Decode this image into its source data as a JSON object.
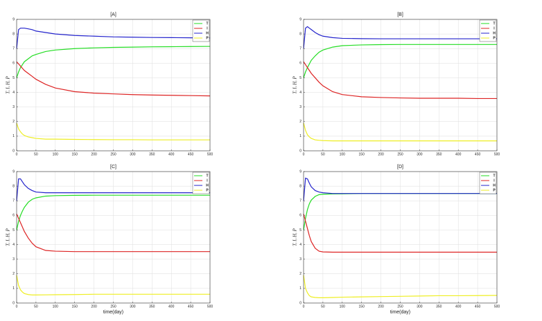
{
  "chart_data": [
    {
      "type": "line",
      "title": "[A]",
      "ylabel": "T, I, H, P",
      "x": [
        0,
        5,
        10,
        15,
        20,
        30,
        40,
        50,
        75,
        100,
        150,
        200,
        250,
        300,
        350,
        400,
        450,
        500
      ],
      "series": [
        {
          "name": "T",
          "color": "#22dd22",
          "values": [
            5.0,
            5.4,
            5.7,
            5.9,
            6.1,
            6.3,
            6.5,
            6.6,
            6.8,
            6.9,
            7.0,
            7.05,
            7.08,
            7.1,
            7.12,
            7.13,
            7.14,
            7.15
          ]
        },
        {
          "name": "I",
          "color": "#dd2222",
          "values": [
            6.1,
            5.95,
            5.8,
            5.65,
            5.5,
            5.3,
            5.1,
            4.9,
            4.55,
            4.3,
            4.05,
            3.95,
            3.9,
            3.85,
            3.82,
            3.8,
            3.78,
            3.76
          ]
        },
        {
          "name": "H",
          "color": "#2222cc",
          "values": [
            7.0,
            8.3,
            8.4,
            8.4,
            8.4,
            8.35,
            8.3,
            8.2,
            8.1,
            8.0,
            7.9,
            7.85,
            7.8,
            7.78,
            7.76,
            7.75,
            7.74,
            7.73
          ]
        },
        {
          "name": "P",
          "color": "#eeee22",
          "values": [
            1.9,
            1.5,
            1.3,
            1.15,
            1.05,
            0.95,
            0.9,
            0.85,
            0.8,
            0.8,
            0.78,
            0.77,
            0.76,
            0.76,
            0.75,
            0.75,
            0.75,
            0.75
          ]
        }
      ],
      "xlim": [
        0,
        500
      ],
      "ylim": [
        0,
        9
      ],
      "xticks": [
        0,
        50,
        100,
        150,
        200,
        250,
        300,
        350,
        400,
        450,
        500
      ],
      "yticks": [
        0,
        1,
        2,
        3,
        4,
        5,
        6,
        7,
        8,
        9
      ],
      "grid": true,
      "legend": "upper right"
    },
    {
      "type": "line",
      "title": "[B]",
      "ylabel": "T, I, H, P",
      "x": [
        0,
        5,
        10,
        15,
        20,
        30,
        40,
        50,
        75,
        100,
        150,
        200,
        250,
        300,
        350,
        400,
        450,
        500
      ],
      "series": [
        {
          "name": "T",
          "color": "#22dd22",
          "values": [
            5.0,
            5.4,
            5.7,
            5.95,
            6.2,
            6.5,
            6.75,
            6.9,
            7.1,
            7.2,
            7.25,
            7.27,
            7.28,
            7.28,
            7.28,
            7.28,
            7.28,
            7.28
          ]
        },
        {
          "name": "I",
          "color": "#dd2222",
          "values": [
            6.1,
            5.9,
            5.7,
            5.5,
            5.3,
            5.0,
            4.7,
            4.45,
            4.05,
            3.85,
            3.7,
            3.65,
            3.62,
            3.6,
            3.6,
            3.6,
            3.58,
            3.58
          ]
        },
        {
          "name": "H",
          "color": "#2222cc",
          "values": [
            7.0,
            8.4,
            8.5,
            8.4,
            8.3,
            8.1,
            7.95,
            7.85,
            7.75,
            7.7,
            7.68,
            7.67,
            7.67,
            7.67,
            7.67,
            7.67,
            7.67,
            7.67
          ]
        },
        {
          "name": "P",
          "color": "#eeee22",
          "values": [
            1.9,
            1.4,
            1.1,
            0.95,
            0.85,
            0.75,
            0.72,
            0.7,
            0.68,
            0.68,
            0.68,
            0.68,
            0.68,
            0.68,
            0.68,
            0.68,
            0.68,
            0.68
          ]
        }
      ],
      "xlim": [
        0,
        500
      ],
      "ylim": [
        0,
        9
      ],
      "xticks": [
        0,
        50,
        100,
        150,
        200,
        250,
        300,
        350,
        400,
        450,
        500
      ],
      "yticks": [
        0,
        1,
        2,
        3,
        4,
        5,
        6,
        7,
        8,
        9
      ],
      "grid": true,
      "legend": "upper right"
    },
    {
      "type": "line",
      "title": "[C]",
      "ylabel": "T, I, H, P",
      "xlabel": "time(day)",
      "x": [
        0,
        5,
        10,
        15,
        20,
        30,
        40,
        50,
        75,
        100,
        150,
        200,
        250,
        300,
        350,
        400,
        450,
        500
      ],
      "series": [
        {
          "name": "T",
          "color": "#22dd22",
          "values": [
            5.0,
            5.6,
            6.0,
            6.3,
            6.55,
            6.9,
            7.1,
            7.2,
            7.32,
            7.35,
            7.37,
            7.38,
            7.38,
            7.38,
            7.38,
            7.38,
            7.38,
            7.38
          ]
        },
        {
          "name": "I",
          "color": "#dd2222",
          "values": [
            6.1,
            5.8,
            5.5,
            5.2,
            4.9,
            4.45,
            4.1,
            3.85,
            3.6,
            3.55,
            3.52,
            3.52,
            3.52,
            3.52,
            3.52,
            3.52,
            3.52,
            3.52
          ]
        },
        {
          "name": "H",
          "color": "#2222cc",
          "values": [
            7.0,
            8.5,
            8.5,
            8.3,
            8.1,
            7.85,
            7.7,
            7.6,
            7.55,
            7.55,
            7.55,
            7.55,
            7.55,
            7.55,
            7.55,
            7.55,
            7.55,
            7.55
          ]
        },
        {
          "name": "P",
          "color": "#eeee22",
          "values": [
            1.9,
            1.2,
            0.9,
            0.75,
            0.65,
            0.58,
            0.55,
            0.55,
            0.56,
            0.57,
            0.58,
            0.6,
            0.6,
            0.6,
            0.6,
            0.6,
            0.6,
            0.6
          ]
        }
      ],
      "xlim": [
        0,
        500
      ],
      "ylim": [
        0,
        9
      ],
      "xticks": [
        0,
        50,
        100,
        150,
        200,
        250,
        300,
        350,
        400,
        450,
        500
      ],
      "yticks": [
        0,
        1,
        2,
        3,
        4,
        5,
        6,
        7,
        8,
        9
      ],
      "grid": true,
      "legend": "upper right"
    },
    {
      "type": "line",
      "title": "[D]",
      "ylabel": "T, I, H, P",
      "xlabel": "time(day)",
      "x": [
        0,
        5,
        10,
        15,
        20,
        30,
        40,
        50,
        75,
        100,
        150,
        200,
        250,
        300,
        350,
        400,
        450,
        500
      ],
      "series": [
        {
          "name": "T",
          "color": "#22dd22",
          "values": [
            5.0,
            5.8,
            6.4,
            6.8,
            7.05,
            7.3,
            7.42,
            7.45,
            7.47,
            7.48,
            7.5,
            7.5,
            7.5,
            7.5,
            7.5,
            7.5,
            7.5,
            7.5
          ]
        },
        {
          "name": "I",
          "color": "#dd2222",
          "values": [
            6.1,
            5.6,
            5.1,
            4.6,
            4.2,
            3.75,
            3.55,
            3.5,
            3.48,
            3.48,
            3.48,
            3.48,
            3.48,
            3.48,
            3.48,
            3.48,
            3.48,
            3.48
          ]
        },
        {
          "name": "H",
          "color": "#2222cc",
          "values": [
            7.0,
            8.55,
            8.5,
            8.2,
            7.95,
            7.7,
            7.6,
            7.55,
            7.5,
            7.5,
            7.5,
            7.5,
            7.5,
            7.5,
            7.5,
            7.5,
            7.5,
            7.5
          ]
        },
        {
          "name": "P",
          "color": "#eeee22",
          "values": [
            1.9,
            1.0,
            0.7,
            0.5,
            0.42,
            0.38,
            0.36,
            0.36,
            0.38,
            0.4,
            0.42,
            0.44,
            0.46,
            0.48,
            0.5,
            0.5,
            0.51,
            0.52
          ]
        }
      ],
      "xlim": [
        0,
        500
      ],
      "ylim": [
        0,
        9
      ],
      "xticks": [
        0,
        50,
        100,
        150,
        200,
        250,
        300,
        350,
        400,
        450,
        500
      ],
      "yticks": [
        0,
        1,
        2,
        3,
        4,
        5,
        6,
        7,
        8,
        9
      ],
      "grid": true,
      "legend": "upper right"
    }
  ]
}
